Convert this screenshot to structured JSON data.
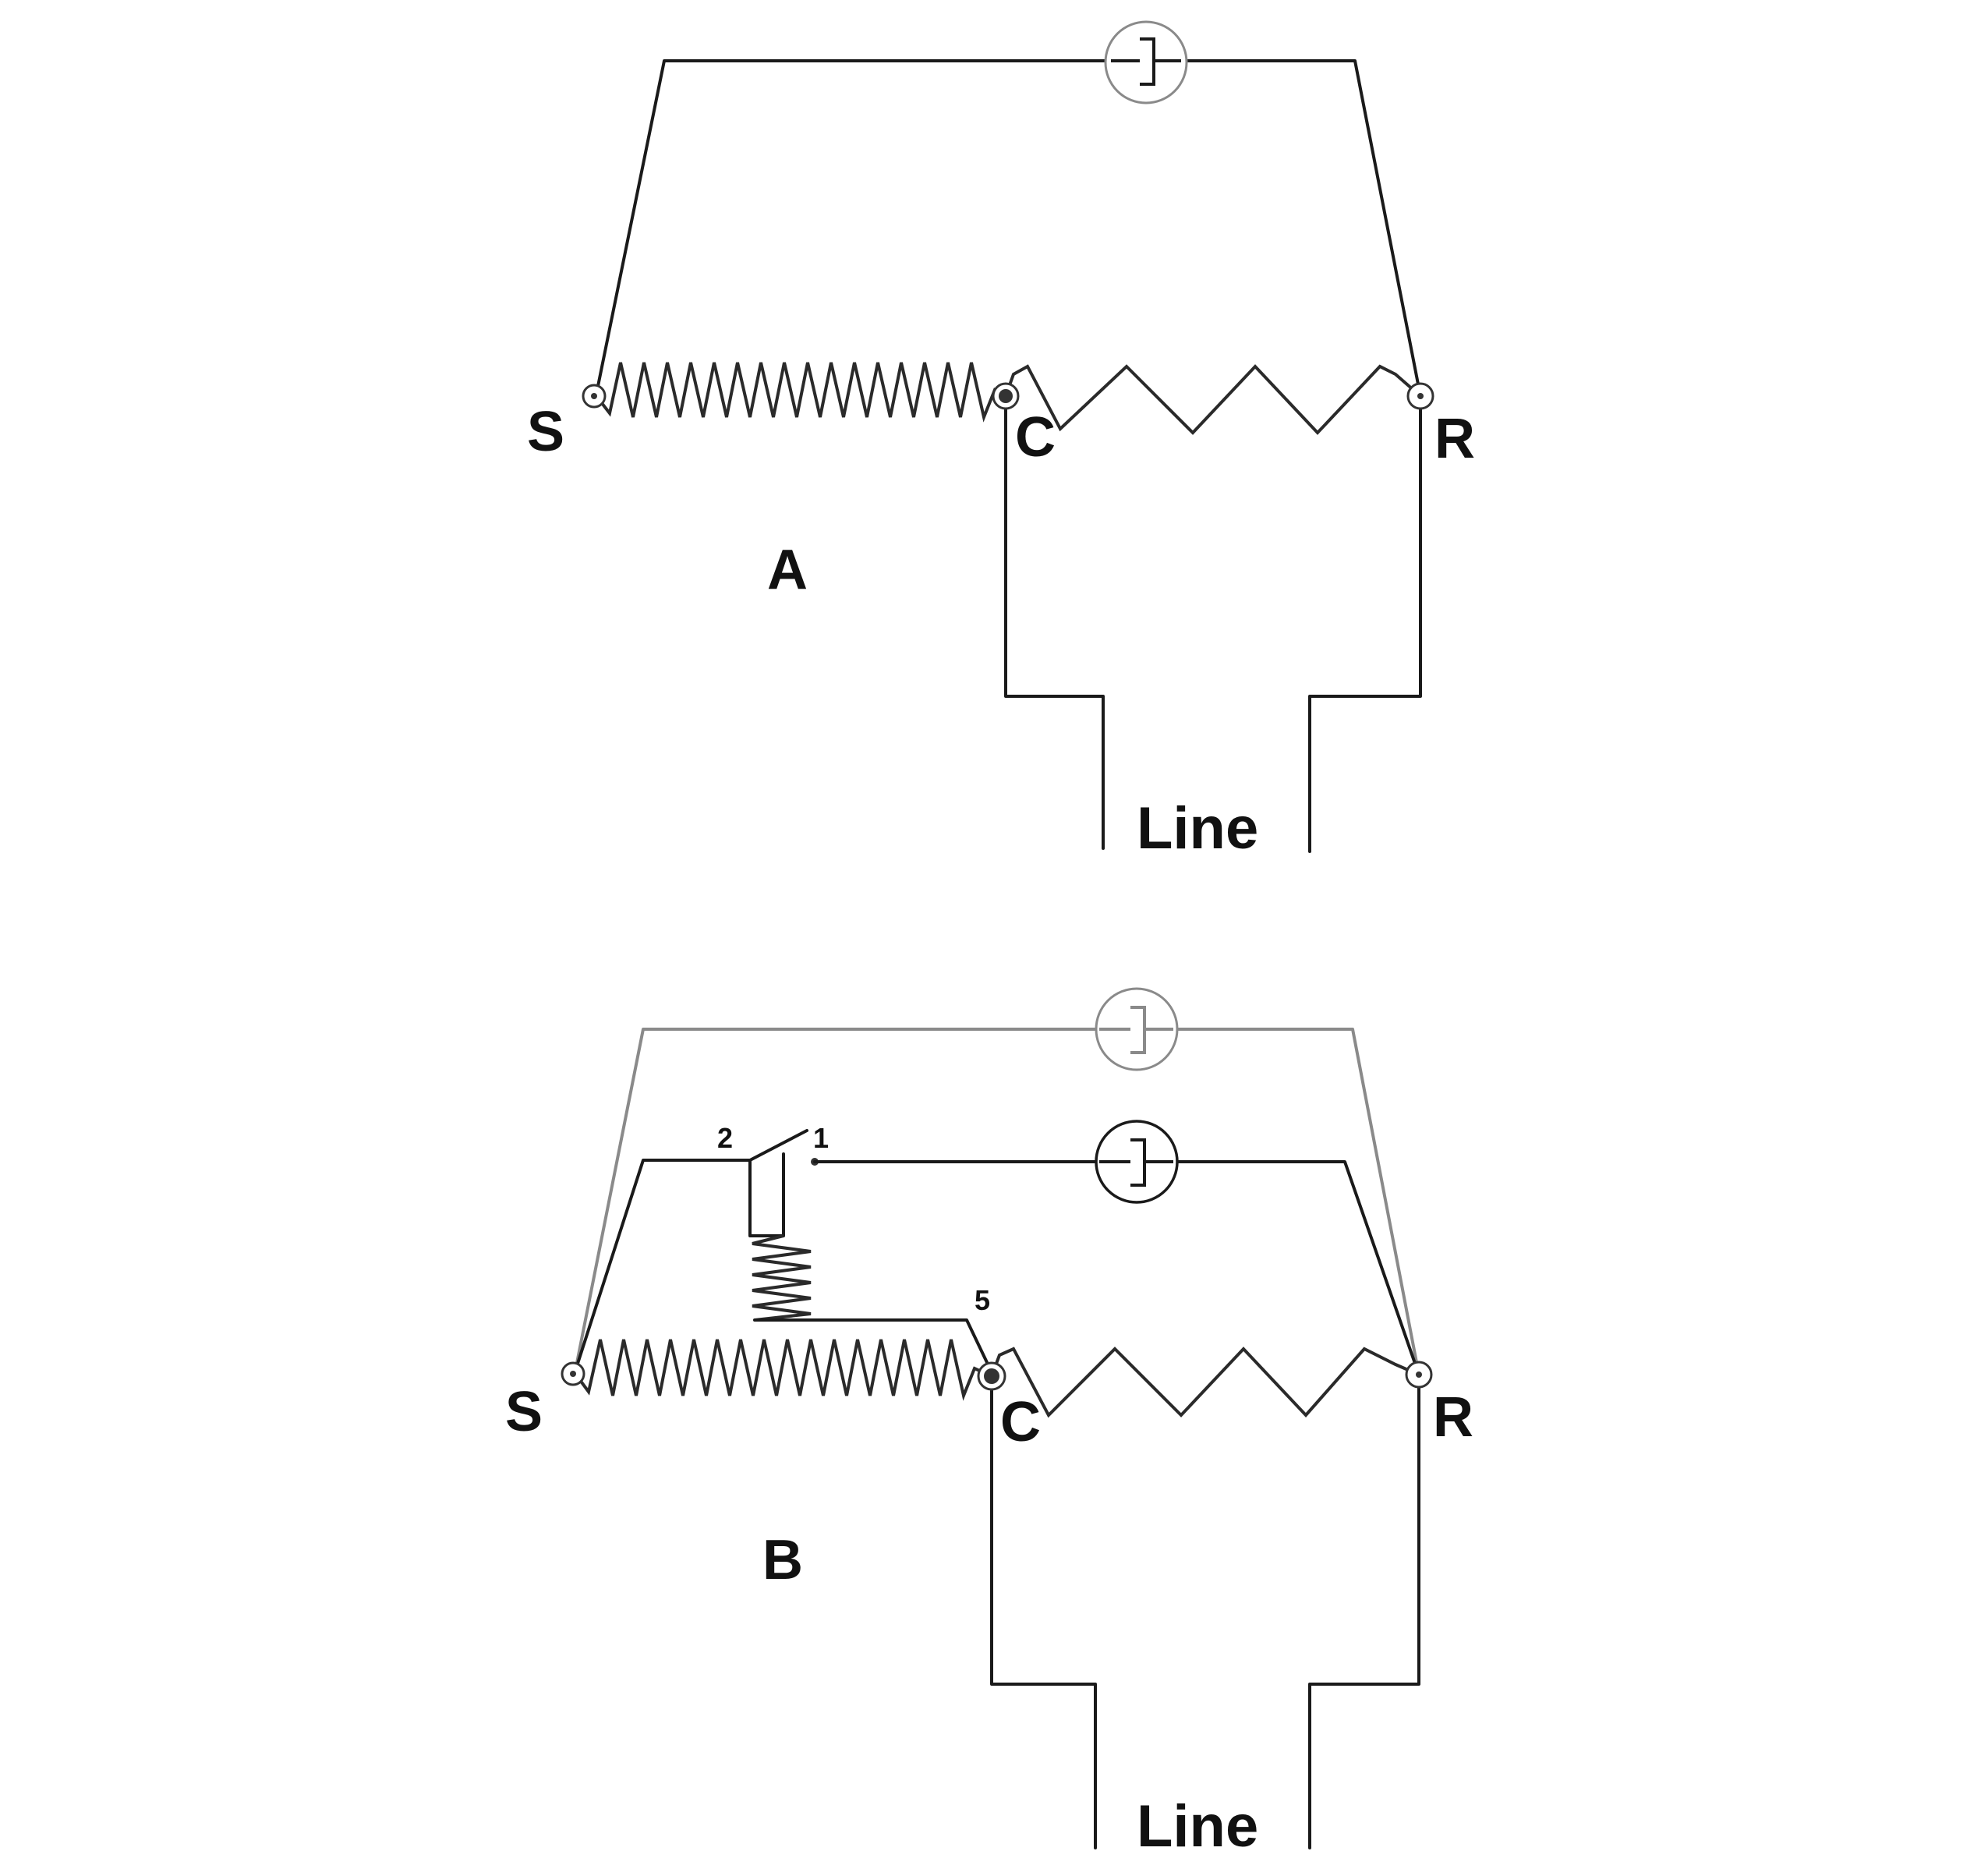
{
  "diagram_a": {
    "label": "A",
    "terminal_s": "S",
    "terminal_c": "C",
    "terminal_r": "R",
    "line_label": "Line"
  },
  "diagram_b": {
    "label": "B",
    "terminal_s": "S",
    "terminal_c": "C",
    "terminal_r": "R",
    "line_label": "Line",
    "relay_contact_2": "2",
    "relay_contact_1": "1",
    "relay_coil_5": "5"
  },
  "colors": {
    "wire": "#1a1a1a",
    "secondary_wire": "#8a8a8a",
    "background": "#ffffff"
  }
}
